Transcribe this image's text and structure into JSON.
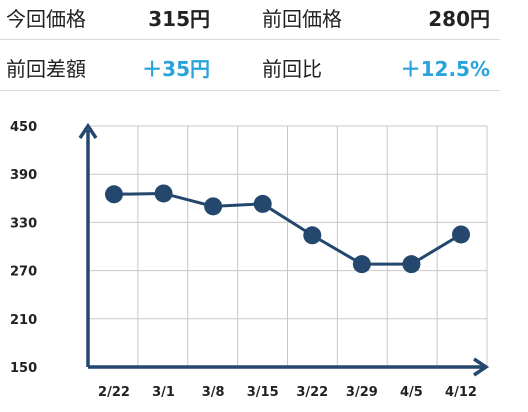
{
  "stats": {
    "current_price": {
      "label": "今回価格",
      "value": "315円"
    },
    "previous_price": {
      "label": "前回価格",
      "value": "280円"
    },
    "difference": {
      "label": "前回差額",
      "value": "＋35円"
    },
    "ratio": {
      "label": "前回比",
      "value": "＋12.5%"
    }
  },
  "colors": {
    "accent": "#29a3dc",
    "series": "#24476e",
    "grid": "#c8c8c8"
  },
  "chart_data": {
    "type": "line",
    "categories": [
      "2/22",
      "3/1",
      "3/8",
      "3/15",
      "3/22",
      "3/29",
      "4/5",
      "4/12"
    ],
    "series": [
      {
        "values": [
          365,
          366,
          350,
          353,
          314,
          278,
          278,
          315
        ]
      }
    ],
    "ylim": [
      150,
      450
    ],
    "yticks": [
      150,
      210,
      270,
      330,
      390,
      450
    ],
    "grid": true,
    "title": "",
    "xlabel": "",
    "ylabel": ""
  }
}
